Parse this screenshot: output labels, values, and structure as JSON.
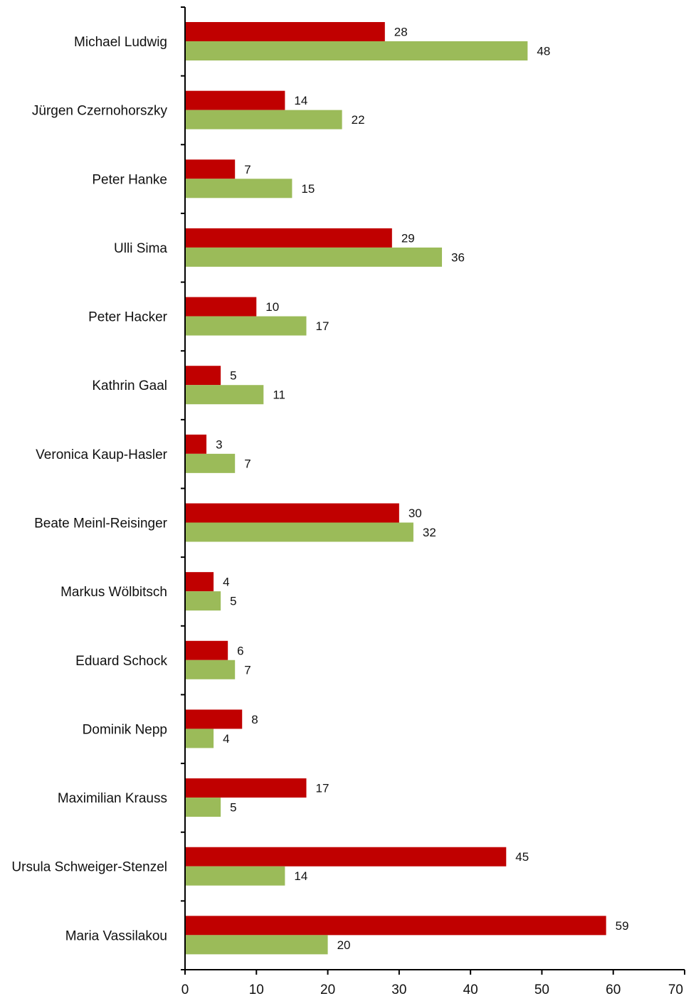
{
  "chart_data": {
    "type": "bar",
    "orientation": "horizontal",
    "categories": [
      "Michael Ludwig",
      "Jürgen Czernohorszky",
      "Peter Hanke",
      "Ulli Sima",
      "Peter Hacker",
      "Kathrin Gaal",
      "Veronica Kaup-Hasler",
      "Beate Meinl-Reisinger",
      "Markus Wölbitsch",
      "Eduard Schock",
      "Dominik Nepp",
      "Maximilian Krauss",
      "Ursula Schweiger-Stenzel",
      "Maria Vassilakou"
    ],
    "series": [
      {
        "color": "#c00000",
        "values": [
          28,
          14,
          7,
          29,
          10,
          5,
          3,
          30,
          4,
          6,
          8,
          17,
          45,
          59
        ]
      },
      {
        "color": "#9bbb59",
        "values": [
          48,
          22,
          15,
          36,
          17,
          11,
          7,
          32,
          5,
          7,
          4,
          5,
          14,
          20
        ]
      }
    ],
    "xlim": [
      0,
      70
    ],
    "xticks": [
      "0",
      "10",
      "20",
      "30",
      "40",
      "50",
      "60",
      "70"
    ],
    "grid": false,
    "legend": "none",
    "data_labels": true
  }
}
